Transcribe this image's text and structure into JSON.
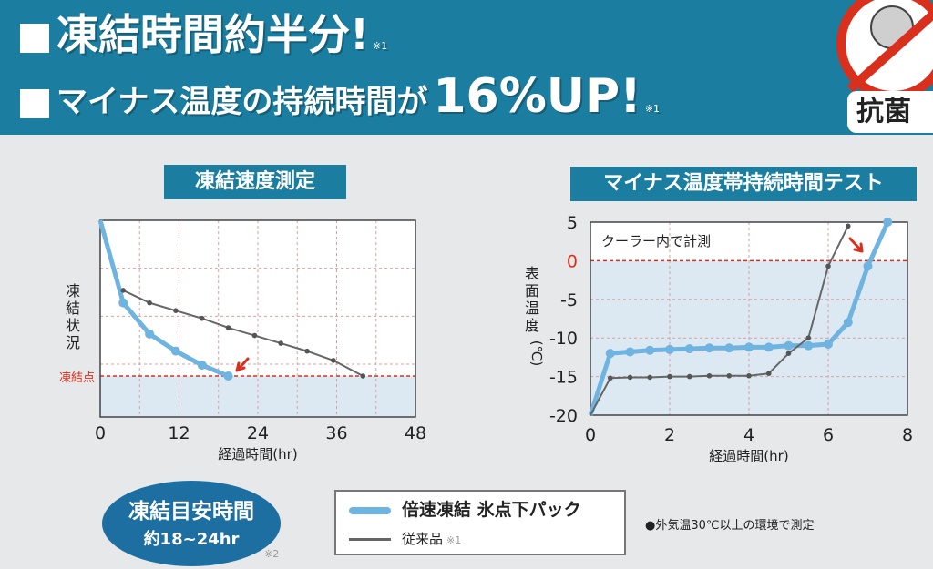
{
  "banner": {
    "headline1": "凍結時間約半分!",
    "headline1_note": "※1",
    "headline2": "マイナス温度の持続時間が",
    "headline2_big": "16%UP!",
    "headline2_note": "※1",
    "badge_label": "抗菌",
    "badge_icon": "no-bacteria-icon",
    "colors": {
      "accent": "#1b7ea0",
      "badge_red": "#d8301d"
    }
  },
  "chart_data": [
    {
      "type": "line",
      "title": "凍結速度測定",
      "xlabel": "経過時間(hr)",
      "ylabel": "凍結状況",
      "freezing_point_label": "凍結点",
      "xlim": [
        0,
        48
      ],
      "x_ticks": [
        0,
        12,
        24,
        36,
        48
      ],
      "tick_labels": [
        "0",
        "12",
        "24",
        "36",
        "48"
      ],
      "ylim": [
        0,
        100
      ],
      "y_scale_note": "unlabeled relative axis, freezing point at 0",
      "grid": true,
      "series": [
        {
          "name": "倍速凍結 氷点下パック",
          "color": "#6fb3e0",
          "points": [
            [
              0,
              100
            ],
            [
              3.5,
              47
            ],
            [
              7.5,
              27
            ],
            [
              11.5,
              16
            ],
            [
              15.5,
              7
            ],
            [
              19.5,
              0
            ]
          ]
        },
        {
          "name": "従来品",
          "color": "#666666",
          "points": [
            [
              3.5,
              55
            ],
            [
              7.5,
              47
            ],
            [
              11.5,
              42
            ],
            [
              15.5,
              37
            ],
            [
              19.5,
              31
            ],
            [
              23.5,
              26
            ],
            [
              27.5,
              21
            ],
            [
              31.5,
              16
            ],
            [
              35.5,
              10
            ],
            [
              40,
              0
            ]
          ]
        }
      ],
      "arrow_color": "#d8301d"
    },
    {
      "type": "line",
      "title": "マイナス温度帯持続時間テスト",
      "annotation": "クーラー内で計測",
      "xlabel": "経過時間(hr)",
      "ylabel": "表面温度(℃)",
      "xlim": [
        0,
        8
      ],
      "x_ticks": [
        0,
        2,
        4,
        6,
        8
      ],
      "x_tick_labels": [
        "0",
        "2",
        "4",
        "6",
        "8"
      ],
      "ylim": [
        -20,
        5
      ],
      "y_ticks": [
        5,
        0,
        -5,
        -10,
        -15,
        -20
      ],
      "y_tick_labels": [
        "5",
        "0",
        "-5",
        "-10",
        "-15",
        "-20"
      ],
      "zero_color": "#d8301d",
      "grid": true,
      "series": [
        {
          "name": "倍速凍結 氷点下パック",
          "color": "#6fb3e0",
          "points": [
            [
              0,
              -20
            ],
            [
              0.5,
              -12
            ],
            [
              1,
              -11.8
            ],
            [
              1.5,
              -11.6
            ],
            [
              2,
              -11.5
            ],
            [
              2.5,
              -11.4
            ],
            [
              3,
              -11.3
            ],
            [
              3.5,
              -11.3
            ],
            [
              4,
              -11.2
            ],
            [
              4.5,
              -11.2
            ],
            [
              5,
              -11
            ],
            [
              5.5,
              -11
            ],
            [
              6,
              -10.8
            ],
            [
              6.5,
              -8
            ],
            [
              7,
              -0.7
            ],
            [
              7.5,
              5
            ]
          ]
        },
        {
          "name": "従来品",
          "color": "#666666",
          "points": [
            [
              0,
              -20
            ],
            [
              0.5,
              -15.2
            ],
            [
              1,
              -15.1
            ],
            [
              1.5,
              -15.1
            ],
            [
              2,
              -15
            ],
            [
              2.5,
              -15
            ],
            [
              3,
              -14.9
            ],
            [
              3.5,
              -14.9
            ],
            [
              4,
              -14.9
            ],
            [
              4.5,
              -14.6
            ],
            [
              5,
              -12
            ],
            [
              5.5,
              -10
            ],
            [
              6,
              -0.7
            ],
            [
              6.5,
              4.5
            ]
          ]
        }
      ],
      "arrow_color": "#d8301d"
    }
  ],
  "legend": {
    "new_product": "倍速凍結 氷点下パック",
    "conventional": "従来品",
    "conventional_note": "※1"
  },
  "estimate": {
    "title": "凍結目安時間",
    "value": "約18~24hr",
    "note": "※2"
  },
  "measure_note": "●外気温30℃以上の環境で測定"
}
